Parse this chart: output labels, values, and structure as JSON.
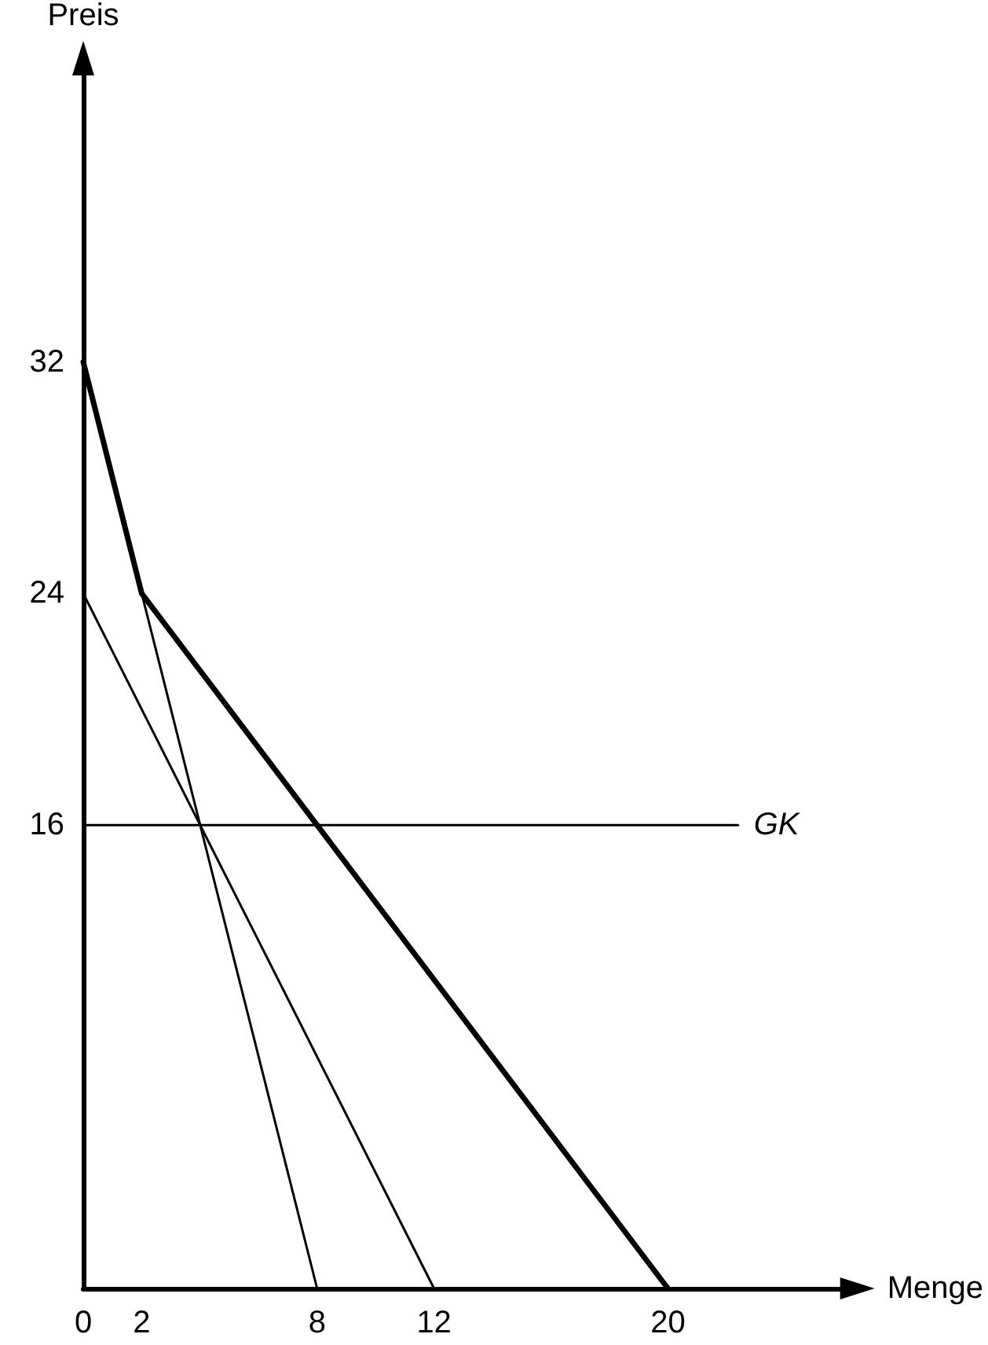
{
  "chart_data": {
    "type": "line",
    "xlabel": "Menge",
    "ylabel": "Preis",
    "xlim": [
      0,
      26
    ],
    "ylim": [
      0,
      42
    ],
    "xticks": [
      0,
      2,
      8,
      12,
      20
    ],
    "yticks": [
      16,
      24,
      32
    ],
    "grid": false,
    "legend": false,
    "marker": "none",
    "line_style": "solid",
    "series": [
      {
        "color": "#000000",
        "x": [
          0,
          8
        ],
        "values": [
          32,
          0
        ]
      },
      {
        "color": "#000000",
        "x": [
          0,
          12
        ],
        "values": [
          24,
          0
        ]
      },
      {
        "color": "#000000",
        "x": [
          0,
          2,
          20
        ],
        "values": [
          32,
          24,
          0
        ]
      },
      {
        "name": "GK",
        "color": "#000000",
        "x": [
          0,
          22.4
        ],
        "values": [
          16,
          16
        ]
      }
    ]
  }
}
